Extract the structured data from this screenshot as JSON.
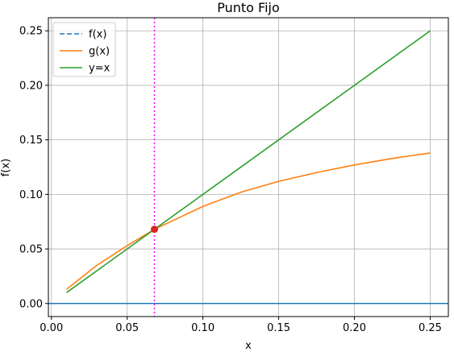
{
  "chart_data": {
    "type": "line",
    "title": "Punto Fijo",
    "xlabel": "x",
    "ylabel": "f(x)",
    "xlim": [
      -0.002,
      0.262
    ],
    "ylim": [
      -0.012,
      0.262
    ],
    "grid": true,
    "legend_position": "top-left",
    "xticks": [
      {
        "value": 0.0,
        "label": "0.00"
      },
      {
        "value": 0.05,
        "label": "0.05"
      },
      {
        "value": 0.1,
        "label": "0.10"
      },
      {
        "value": 0.15,
        "label": "0.15"
      },
      {
        "value": 0.2,
        "label": "0.20"
      },
      {
        "value": 0.25,
        "label": "0.25"
      }
    ],
    "yticks": [
      {
        "value": 0.0,
        "label": "0.00"
      },
      {
        "value": 0.05,
        "label": "0.05"
      },
      {
        "value": 0.1,
        "label": "0.10"
      },
      {
        "value": 0.15,
        "label": "0.15"
      },
      {
        "value": 0.2,
        "label": "0.20"
      },
      {
        "value": 0.25,
        "label": "0.25"
      }
    ],
    "series": [
      {
        "name": "f(x)",
        "color": "#1f77b4",
        "style": "dashed",
        "x": [
          0.01,
          0.05,
          0.1,
          0.15,
          0.2,
          0.25
        ],
        "y": [
          0.0,
          0.0,
          0.0,
          0.0,
          0.0,
          0.0
        ]
      },
      {
        "name": "g(x)",
        "color": "#ff7f0e",
        "style": "solid",
        "x": [
          0.01,
          0.03,
          0.05,
          0.068,
          0.1,
          0.125,
          0.15,
          0.175,
          0.2,
          0.225,
          0.25
        ],
        "y": [
          0.013,
          0.035,
          0.053,
          0.068,
          0.089,
          0.102,
          0.112,
          0.12,
          0.127,
          0.133,
          0.138
        ]
      },
      {
        "name": "y=x",
        "color": "#2ca02c",
        "style": "solid",
        "x": [
          0.01,
          0.25
        ],
        "y": [
          0.01,
          0.25
        ]
      }
    ],
    "vertical_line": {
      "x": 0.068,
      "color": "#ff00ff",
      "style": "dotted"
    },
    "horizontal_line": {
      "y": 0.0,
      "color": "#1f77b4",
      "style": "solid"
    },
    "fixed_point": {
      "x": 0.068,
      "y": 0.068,
      "color": "#d62728"
    }
  }
}
